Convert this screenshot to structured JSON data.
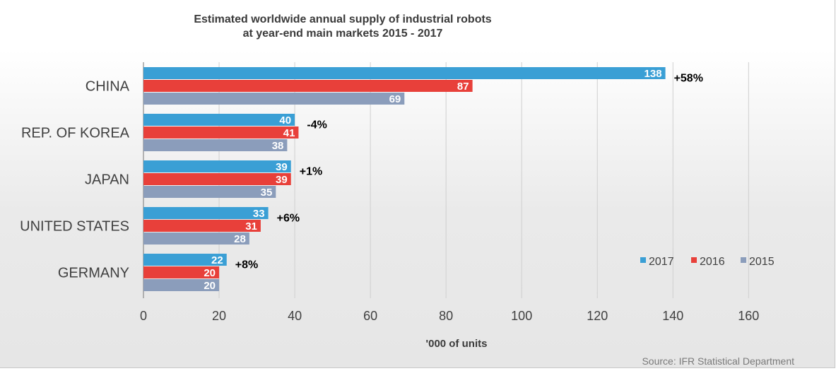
{
  "chart_data": {
    "type": "bar",
    "orientation": "horizontal",
    "title_line1": "Estimated worldwide annual supply of industrial robots",
    "title_line2": "at year-end main markets 2015 - 2017",
    "xlabel": "'000 of units",
    "source": "Source: IFR Statistical Department",
    "categories": [
      "CHINA",
      "REP. OF KOREA",
      "JAPAN",
      "UNITED STATES",
      "GERMANY"
    ],
    "series": [
      {
        "name": "2017",
        "color": "#3a9fd5",
        "values": [
          138,
          40,
          39,
          33,
          22
        ]
      },
      {
        "name": "2016",
        "color": "#e8403a",
        "values": [
          87,
          41,
          39,
          31,
          20
        ]
      },
      {
        "name": "2015",
        "color": "#8b9dbb",
        "values": [
          69,
          38,
          35,
          28,
          20
        ]
      }
    ],
    "changes": [
      "+58%",
      "-4%",
      "+1%",
      "+6%",
      "+8%"
    ],
    "xlim": [
      0,
      160
    ],
    "xticks": [
      0,
      20,
      40,
      60,
      80,
      100,
      120,
      140,
      160
    ],
    "grid": true,
    "legend_position": "bottom-right"
  }
}
